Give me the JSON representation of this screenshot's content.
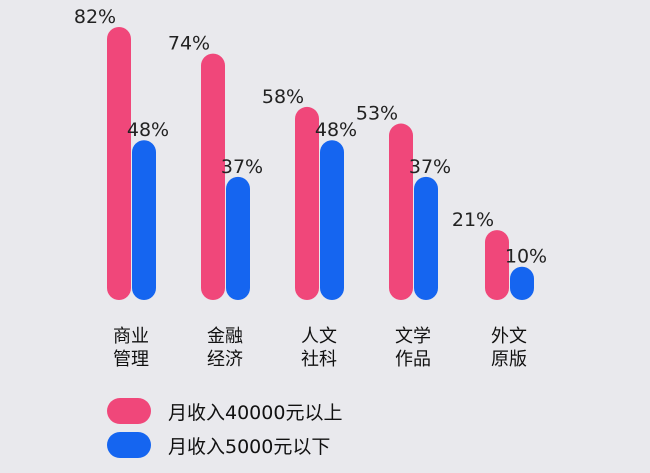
{
  "chart_data": {
    "type": "bar",
    "title": "",
    "xlabel": "",
    "ylabel": "",
    "ylim": [
      0,
      82
    ],
    "grid": false,
    "legend_placement": "bottom-left",
    "categories": [
      [
        "商业",
        "管理"
      ],
      [
        "金融",
        "经济"
      ],
      [
        "人文",
        "社科"
      ],
      [
        "文学",
        "作品"
      ],
      [
        "外文",
        "原版"
      ]
    ],
    "series": [
      {
        "name": "月收入40000元以上",
        "values": [
          82,
          74,
          58,
          53,
          21
        ],
        "labels": [
          "82%",
          "74%",
          "58%",
          "53%",
          "21%"
        ],
        "color": "#f0477a"
      },
      {
        "name": "月收入5000元以下",
        "values": [
          48,
          37,
          48,
          37,
          10
        ],
        "labels": [
          "48%",
          "37%",
          "48%",
          "37%",
          "10%"
        ],
        "color": "#1565f0"
      }
    ]
  }
}
